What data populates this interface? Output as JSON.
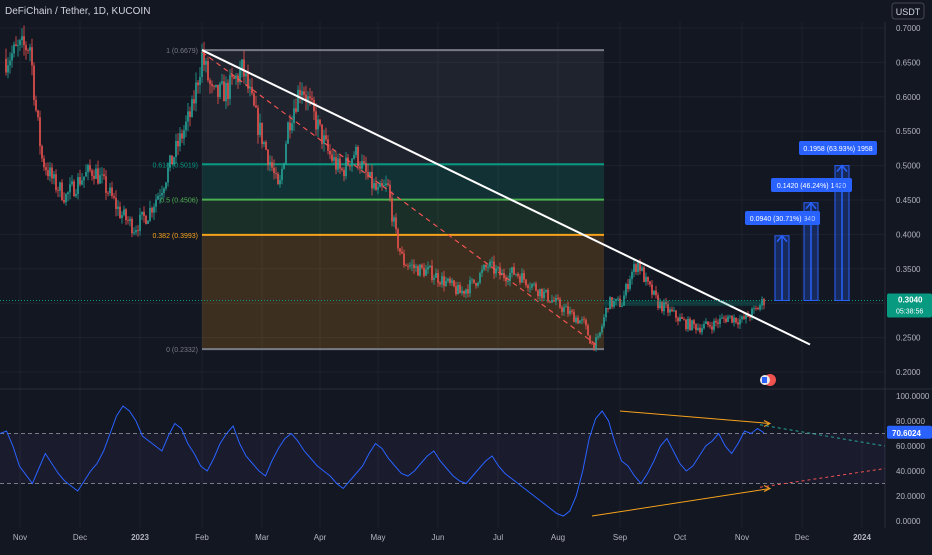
{
  "symbol_title": "DeFiChain / Tether, 1D, KUCOIN",
  "currency_label": "USDT",
  "colors": {
    "bg": "#131722",
    "up": "#26a69a",
    "down": "#ef5350",
    "axis_text": "#b2b5be",
    "grid": "#1e222d",
    "rsi_line": "#2962ff",
    "trend_line": "#ffffff",
    "fib_top": "#787b86",
    "fib_618": "#089981",
    "fib_05": "#4caf50",
    "fib_382": "#f7a21b",
    "fib_0": "#787b86",
    "projection": "#2962ff",
    "divergence": "#f7a21b",
    "price_tag": "#089981"
  },
  "chart_data": [
    {
      "type": "candlestick",
      "title": "DeFiChain / Tether, 1D, KUCOIN",
      "x_ticks": [
        "Nov",
        "Dec",
        "2023",
        "Feb",
        "Mar",
        "Apr",
        "May",
        "Jun",
        "Jul",
        "Aug",
        "Sep",
        "Oct",
        "Nov",
        "Dec",
        "2024"
      ],
      "y_ticks": [
        "0.7000",
        "0.6500",
        "0.6000",
        "0.5500",
        "0.5000",
        "0.4500",
        "0.4000",
        "0.3500",
        "0.3000",
        "0.2500",
        "0.2000"
      ],
      "ylim": [
        0.18,
        0.705
      ],
      "price_path": [
        {
          "x": "2022-10-25",
          "close": 0.655
        },
        {
          "x": "2022-11-01",
          "close": 0.67
        },
        {
          "x": "2022-11-06",
          "close": 0.675
        },
        {
          "x": "2022-11-09",
          "close": 0.58
        },
        {
          "x": "2022-11-12",
          "close": 0.51
        },
        {
          "x": "2022-11-18",
          "close": 0.475
        },
        {
          "x": "2022-11-24",
          "close": 0.455
        },
        {
          "x": "2022-12-01",
          "close": 0.48
        },
        {
          "x": "2022-12-08",
          "close": 0.495
        },
        {
          "x": "2022-12-15",
          "close": 0.465
        },
        {
          "x": "2022-12-22",
          "close": 0.43
        },
        {
          "x": "2022-12-29",
          "close": 0.41
        },
        {
          "x": "2023-01-05",
          "close": 0.43
        },
        {
          "x": "2023-01-12",
          "close": 0.47
        },
        {
          "x": "2023-01-20",
          "close": 0.53
        },
        {
          "x": "2023-01-27",
          "close": 0.58
        },
        {
          "x": "2023-02-01",
          "close": 0.66
        },
        {
          "x": "2023-02-06",
          "close": 0.6
        },
        {
          "x": "2023-02-13",
          "close": 0.61
        },
        {
          "x": "2023-02-20",
          "close": 0.64
        },
        {
          "x": "2023-02-27",
          "close": 0.56
        },
        {
          "x": "2023-03-06",
          "close": 0.5
        },
        {
          "x": "2023-03-10",
          "close": 0.46
        },
        {
          "x": "2023-03-15",
          "close": 0.56
        },
        {
          "x": "2023-03-22",
          "close": 0.62
        },
        {
          "x": "2023-03-29",
          "close": 0.57
        },
        {
          "x": "2023-04-05",
          "close": 0.52
        },
        {
          "x": "2023-04-12",
          "close": 0.49
        },
        {
          "x": "2023-04-19",
          "close": 0.52
        },
        {
          "x": "2023-04-26",
          "close": 0.48
        },
        {
          "x": "2023-05-01",
          "close": 0.46
        },
        {
          "x": "2023-05-06",
          "close": 0.47
        },
        {
          "x": "2023-05-10",
          "close": 0.4
        },
        {
          "x": "2023-05-14",
          "close": 0.36
        },
        {
          "x": "2023-05-21",
          "close": 0.35
        },
        {
          "x": "2023-05-28",
          "close": 0.345
        },
        {
          "x": "2023-06-05",
          "close": 0.33
        },
        {
          "x": "2023-06-12",
          "close": 0.315
        },
        {
          "x": "2023-06-19",
          "close": 0.33
        },
        {
          "x": "2023-06-26",
          "close": 0.355
        },
        {
          "x": "2023-07-03",
          "close": 0.34
        },
        {
          "x": "2023-07-10",
          "close": 0.345
        },
        {
          "x": "2023-07-17",
          "close": 0.33
        },
        {
          "x": "2023-07-24",
          "close": 0.315
        },
        {
          "x": "2023-07-31",
          "close": 0.3
        },
        {
          "x": "2023-08-07",
          "close": 0.285
        },
        {
          "x": "2023-08-14",
          "close": 0.27
        },
        {
          "x": "2023-08-18",
          "close": 0.24
        },
        {
          "x": "2023-08-21",
          "close": 0.245
        },
        {
          "x": "2023-08-26",
          "close": 0.3
        },
        {
          "x": "2023-09-02",
          "close": 0.3
        },
        {
          "x": "2023-09-06",
          "close": 0.34
        },
        {
          "x": "2023-09-10",
          "close": 0.36
        },
        {
          "x": "2023-09-14",
          "close": 0.33
        },
        {
          "x": "2023-09-20",
          "close": 0.3
        },
        {
          "x": "2023-09-27",
          "close": 0.285
        },
        {
          "x": "2023-10-04",
          "close": 0.27
        },
        {
          "x": "2023-10-11",
          "close": 0.265
        },
        {
          "x": "2023-10-18",
          "close": 0.27
        },
        {
          "x": "2023-10-25",
          "close": 0.28
        },
        {
          "x": "2023-11-01",
          "close": 0.275
        },
        {
          "x": "2023-11-08",
          "close": 0.29
        },
        {
          "x": "2023-11-12",
          "close": 0.304
        }
      ],
      "fibonacci": [
        {
          "label": "1 (0.6679)",
          "value": 0.6679
        },
        {
          "label": "0.618 (0.5019)",
          "value": 0.5019
        },
        {
          "label": "0.5 (0.4506)",
          "value": 0.4506
        },
        {
          "label": "0.382 (0.3993)",
          "value": 0.3993
        },
        {
          "label": "0 (0.2332)",
          "value": 0.2332
        }
      ],
      "trendline": {
        "from": {
          "x": "2023-02-01",
          "y": 0.6679
        },
        "to": {
          "x": "2023-12-01",
          "y": 0.24
        }
      },
      "projections": [
        {
          "label": "0.0940 (30.71%) 940",
          "from": 0.304,
          "to": 0.398
        },
        {
          "label": "0.1420 (46.24%) 1420",
          "from": 0.304,
          "to": 0.446
        },
        {
          "label": "0.1958 (63.93%) 1958",
          "from": 0.304,
          "to": 0.5
        }
      ],
      "last_price": {
        "value": "0.3040",
        "countdown": "05:38:56"
      }
    },
    {
      "type": "line",
      "y_ticks": [
        "100.0000",
        "80.0000",
        "60.0000",
        "40.0000",
        "20.0000",
        "0.0000"
      ],
      "ylim": [
        0,
        100
      ],
      "levels": [
        70,
        30
      ],
      "series": [
        {
          "values": [
            70,
            72,
            60,
            44,
            37,
            30,
            42,
            54,
            46,
            38,
            32,
            28,
            24,
            32,
            40,
            46,
            56,
            70,
            84,
            92,
            88,
            80,
            68,
            64,
            60,
            56,
            68,
            78,
            74,
            62,
            54,
            44,
            40,
            50,
            62,
            70,
            76,
            62,
            52,
            46,
            40,
            36,
            48,
            58,
            66,
            70,
            64,
            56,
            50,
            44,
            40,
            36,
            30,
            26,
            32,
            38,
            44,
            54,
            62,
            58,
            50,
            44,
            38,
            36,
            40,
            46,
            52,
            56,
            48,
            42,
            36,
            32,
            30,
            36,
            42,
            48,
            52,
            44,
            38,
            34,
            30,
            26,
            22,
            18,
            14,
            10,
            6,
            4,
            8,
            20,
            40,
            66,
            82,
            88,
            80,
            62,
            48,
            44,
            36,
            30,
            38,
            48,
            60,
            66,
            56,
            46,
            40,
            44,
            52,
            60,
            64,
            70,
            60,
            54,
            62,
            72,
            70,
            74,
            70.6
          ]
        }
      ],
      "divergence": [
        {
          "from": {
            "x": "2023-09-01",
            "y": 88
          },
          "to": {
            "x": "2023-11-05",
            "y": 78
          }
        },
        {
          "from": {
            "x": "2023-08-18",
            "y": 4
          },
          "to": {
            "x": "2023-11-05",
            "y": 26
          }
        }
      ],
      "last_value": "70.6024"
    }
  ]
}
